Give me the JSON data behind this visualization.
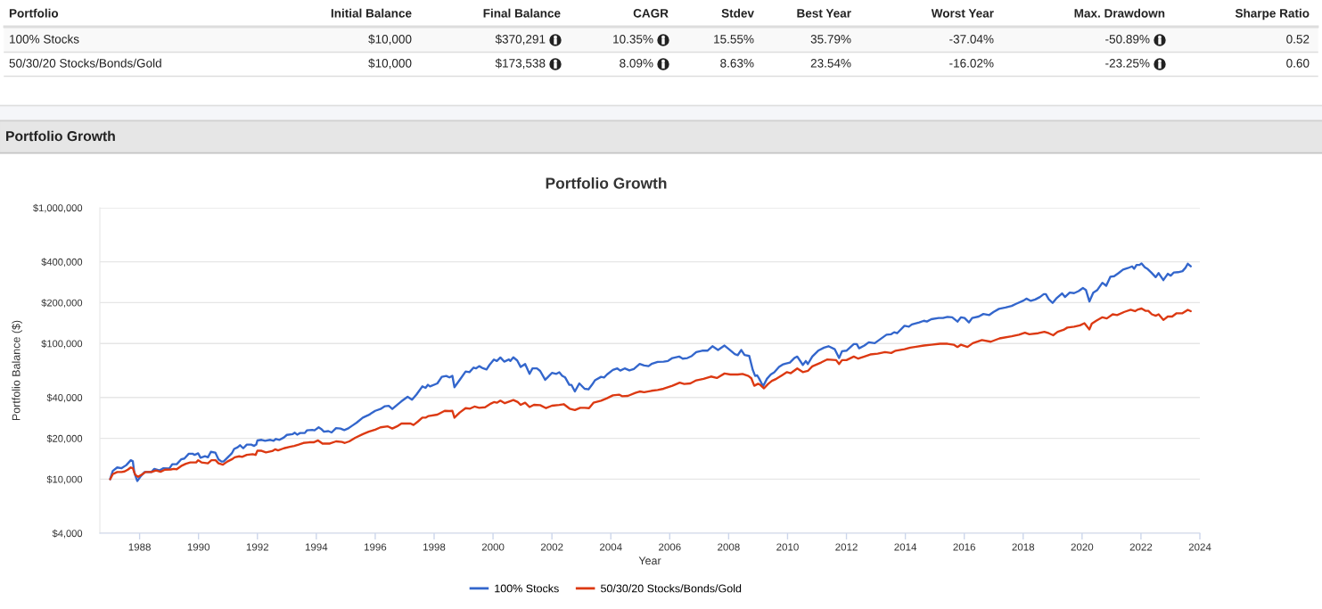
{
  "chart_data": [
    {
      "type": "other",
      "categories": [
        "Portfolio",
        "Initial Balance",
        "Final Balance",
        "CAGR",
        "Stdev",
        "Best Year",
        "Worst Year",
        "Max. Drawdown",
        "Sharpe Ratio"
      ],
      "y_categories": [
        "100% Stocks",
        "50/30/20 Stocks/Bonds/Gold"
      ],
      "cell_labels": [
        [
          "$10,000",
          "$370,291",
          "10.35%",
          "15.55%",
          "35.79%",
          "-37.04%",
          "-50.89%",
          "0.52"
        ],
        [
          "$10,000",
          "$173,538",
          "8.09%",
          "8.63%",
          "23.54%",
          "-16.02%",
          "-23.25%",
          "0.60"
        ]
      ]
    },
    {
      "type": "other",
      "title": "Portfolio Growth"
    },
    {
      "type": "line",
      "title": "Portfolio Growth",
      "xlabel": "Year",
      "ylabel": "Portfolio Balance ($)",
      "log": true,
      "xlim": [
        1986.65,
        2024
      ],
      "xticks": [
        1988,
        1990,
        1992,
        1994,
        1996,
        1998,
        2000,
        2002,
        2004,
        2006,
        2008,
        2010,
        2012,
        2014,
        2016,
        2018,
        2020,
        2022,
        2024
      ],
      "ylim": [
        4000,
        1000000
      ],
      "yticks": [
        {
          "value": 4000,
          "label": "$4,000"
        },
        {
          "value": 10000,
          "label": "$10,000"
        },
        {
          "value": 20000,
          "label": "$20,000"
        },
        {
          "value": 40000,
          "label": "$40,000"
        },
        {
          "value": 100000,
          "label": "$100,000"
        },
        {
          "value": 200000,
          "label": "$200,000"
        },
        {
          "value": 400000,
          "label": "$400,000"
        },
        {
          "value": 1000000,
          "label": "$1,000,000"
        }
      ],
      "grid": "y",
      "legend": "bottom",
      "series": [
        {
          "name": "100% Stocks",
          "color": "#3366cc",
          "x": [
            1987.0,
            1987.09,
            1987.24,
            1987.39,
            1987.55,
            1987.7,
            1987.77,
            1987.82,
            1987.92,
            1988.05,
            1988.17,
            1988.4,
            1988.5,
            1988.68,
            1988.81,
            1989.01,
            1989.11,
            1989.26,
            1989.41,
            1989.52,
            1989.67,
            1989.8,
            1989.87,
            1989.99,
            1990.07,
            1990.22,
            1990.32,
            1990.42,
            1990.57,
            1990.68,
            1990.78,
            1990.85,
            1990.98,
            1991.13,
            1991.21,
            1991.33,
            1991.41,
            1991.52,
            1991.64,
            1991.79,
            1991.89,
            1991.96,
            1992.0,
            1992.14,
            1992.26,
            1992.44,
            1992.55,
            1992.63,
            1992.75,
            1992.9,
            1993.0,
            1993.2,
            1993.27,
            1993.35,
            1993.45,
            1993.61,
            1993.68,
            1993.86,
            1993.94,
            1994.08,
            1994.16,
            1994.26,
            1994.41,
            1994.52,
            1994.67,
            1994.82,
            1994.95,
            1995.07,
            1995.22,
            1995.37,
            1995.58,
            1995.76,
            1995.83,
            1996.0,
            1996.18,
            1996.33,
            1996.46,
            1996.58,
            1996.77,
            1996.89,
            1997.1,
            1997.25,
            1997.4,
            1997.6,
            1997.71,
            1997.79,
            1997.86,
            1998.11,
            1998.26,
            1998.41,
            1998.52,
            1998.62,
            1998.69,
            1998.87,
            1999.07,
            1999.2,
            1999.34,
            1999.42,
            1999.53,
            1999.63,
            1999.78,
            1999.88,
            2000.03,
            2000.13,
            2000.25,
            2000.38,
            2000.54,
            2000.59,
            2000.69,
            2000.82,
            2000.94,
            2001.09,
            2001.24,
            2001.34,
            2001.49,
            2001.6,
            2001.77,
            2001.85,
            2002.0,
            2002.15,
            2002.25,
            2002.35,
            2002.45,
            2002.59,
            2002.66,
            2002.78,
            2002.93,
            2003.11,
            2003.24,
            2003.36,
            2003.46,
            2003.67,
            2003.77,
            2003.87,
            2004.07,
            2004.22,
            2004.32,
            2004.47,
            2004.63,
            2004.78,
            2004.98,
            2005.13,
            2005.28,
            2005.38,
            2005.59,
            2005.79,
            2005.94,
            2006.09,
            2006.32,
            2006.44,
            2006.6,
            2006.75,
            2006.9,
            2007.1,
            2007.28,
            2007.45,
            2007.64,
            2007.86,
            2008.01,
            2008.21,
            2008.31,
            2008.43,
            2008.54,
            2008.7,
            2008.82,
            2008.9,
            2008.97,
            2009.04,
            2009.17,
            2009.3,
            2009.43,
            2009.55,
            2009.71,
            2009.83,
            2009.93,
            2010.08,
            2010.23,
            2010.33,
            2010.52,
            2010.62,
            2010.69,
            2010.84,
            2011.04,
            2011.24,
            2011.39,
            2011.6,
            2011.75,
            2011.85,
            2012.0,
            2012.25,
            2012.35,
            2012.43,
            2012.61,
            2012.76,
            2012.96,
            2013.16,
            2013.36,
            2013.52,
            2013.62,
            2013.72,
            2013.97,
            2014.12,
            2014.22,
            2014.47,
            2014.63,
            2014.73,
            2014.88,
            2015.13,
            2015.28,
            2015.43,
            2015.59,
            2015.77,
            2015.89,
            2016.01,
            2016.16,
            2016.27,
            2016.49,
            2016.65,
            2016.85,
            2017.0,
            2017.18,
            2017.4,
            2017.61,
            2017.76,
            2018.01,
            2018.11,
            2018.26,
            2018.41,
            2018.57,
            2018.7,
            2018.77,
            2018.87,
            2019.0,
            2019.12,
            2019.32,
            2019.42,
            2019.58,
            2019.73,
            2019.88,
            2020.03,
            2020.13,
            2020.25,
            2020.38,
            2020.52,
            2020.69,
            2020.82,
            2020.96,
            2021.09,
            2021.24,
            2021.39,
            2021.55,
            2021.7,
            2021.77,
            2021.85,
            2021.95,
            2022.02,
            2022.13,
            2022.23,
            2022.35,
            2022.5,
            2022.6,
            2022.76,
            2022.91,
            2023.01,
            2023.11,
            2023.26,
            2023.41,
            2023.51,
            2023.59,
            2023.69
          ],
          "values": [
            10000,
            11500,
            12200,
            12050,
            12700,
            13800,
            13550,
            11200,
            9700,
            10600,
            11300,
            11300,
            11900,
            11600,
            12050,
            12000,
            12900,
            12900,
            14000,
            14200,
            15400,
            15400,
            15100,
            15500,
            14400,
            14750,
            14500,
            15900,
            15700,
            14000,
            13500,
            13500,
            14400,
            15500,
            16700,
            17200,
            17800,
            16900,
            18000,
            18000,
            17600,
            18000,
            19300,
            19500,
            19200,
            19500,
            19200,
            19800,
            19500,
            20300,
            21200,
            21500,
            22000,
            21300,
            21900,
            21900,
            22900,
            23100,
            22900,
            24100,
            23500,
            22400,
            22600,
            22100,
            23800,
            23600,
            23000,
            23600,
            24800,
            26100,
            28400,
            29600,
            30200,
            31900,
            32900,
            34500,
            34700,
            32900,
            35700,
            37500,
            40500,
            38500,
            42000,
            48300,
            47100,
            49600,
            48300,
            50800,
            56800,
            57700,
            56200,
            57700,
            47600,
            54000,
            62200,
            61500,
            66400,
            65500,
            68100,
            66100,
            64400,
            69500,
            76200,
            74300,
            78900,
            73500,
            76200,
            74300,
            79000,
            75000,
            67100,
            70600,
            59700,
            65500,
            65500,
            62800,
            54000,
            56200,
            60700,
            59700,
            61300,
            57700,
            56200,
            49600,
            49600,
            44300,
            50800,
            46400,
            45900,
            49600,
            53500,
            56800,
            56200,
            59100,
            63800,
            65500,
            63100,
            65500,
            63300,
            64800,
            70600,
            68800,
            68100,
            70600,
            73100,
            73500,
            74300,
            78100,
            80100,
            77300,
            78100,
            80900,
            86300,
            88500,
            88500,
            95500,
            89500,
            96500,
            90800,
            83400,
            82100,
            89500,
            82200,
            80900,
            63800,
            57700,
            58200,
            54900,
            48300,
            54900,
            59100,
            61300,
            67100,
            69800,
            71000,
            72400,
            78100,
            80100,
            69500,
            74300,
            70600,
            80100,
            88500,
            93200,
            95500,
            90800,
            78100,
            87700,
            88500,
            99000,
            99000,
            92200,
            96600,
            102000,
            100500,
            108000,
            116000,
            117000,
            121000,
            119000,
            135000,
            133000,
            138000,
            143000,
            147000,
            145000,
            151000,
            154000,
            154000,
            157000,
            156000,
            145000,
            156000,
            154000,
            143000,
            154000,
            158000,
            165000,
            162000,
            171000,
            180000,
            184000,
            189000,
            196000,
            207000,
            214000,
            206000,
            211000,
            220000,
            231000,
            231000,
            212000,
            199000,
            214000,
            234000,
            220000,
            237000,
            235000,
            243000,
            256000,
            248000,
            204000,
            237000,
            248000,
            280000,
            266000,
            310000,
            313000,
            330000,
            350000,
            359000,
            370000,
            355000,
            379000,
            379000,
            389000,
            364000,
            353000,
            333000,
            308000,
            330000,
            293000,
            326000,
            316000,
            333000,
            335000,
            341000,
            361000,
            387000,
            370000
          ]
        },
        {
          "name": "50/30/20 Stocks/Bonds/Gold",
          "color": "#dc3912",
          "x": [
            1987.0,
            1987.09,
            1987.24,
            1987.39,
            1987.49,
            1987.6,
            1987.7,
            1987.77,
            1987.85,
            1987.95,
            1988.1,
            1988.2,
            1988.4,
            1988.56,
            1988.71,
            1988.86,
            1989.06,
            1989.16,
            1989.26,
            1989.41,
            1989.57,
            1989.72,
            1989.92,
            1989.99,
            1990.1,
            1990.32,
            1990.44,
            1990.58,
            1990.68,
            1990.83,
            1990.98,
            1991.13,
            1991.23,
            1991.38,
            1991.48,
            1991.64,
            1991.84,
            1991.94,
            1992.0,
            1992.14,
            1992.29,
            1992.5,
            1992.6,
            1992.7,
            1992.9,
            1993.1,
            1993.25,
            1993.4,
            1993.56,
            1993.76,
            1993.91,
            1994.06,
            1994.21,
            1994.46,
            1994.67,
            1994.87,
            1994.97,
            1995.12,
            1995.32,
            1995.58,
            1995.78,
            1996.0,
            1996.18,
            1996.43,
            1996.58,
            1996.74,
            1996.89,
            1997.2,
            1997.3,
            1997.45,
            1997.6,
            1997.71,
            1997.81,
            1998.11,
            1998.36,
            1998.52,
            1998.62,
            1998.69,
            1998.87,
            1999.07,
            1999.22,
            1999.37,
            1999.53,
            1999.73,
            1999.93,
            2000.03,
            2000.13,
            2000.25,
            2000.4,
            2000.59,
            2000.69,
            2000.84,
            2000.94,
            2001.09,
            2001.24,
            2001.39,
            2001.6,
            2001.8,
            2002.0,
            2002.25,
            2002.4,
            2002.6,
            2002.78,
            2002.96,
            2003.11,
            2003.26,
            2003.41,
            2003.67,
            2003.87,
            2004.07,
            2004.28,
            2004.38,
            2004.58,
            2004.83,
            2004.98,
            2005.13,
            2005.38,
            2005.59,
            2005.79,
            2006.09,
            2006.34,
            2006.49,
            2006.7,
            2006.9,
            2007.15,
            2007.4,
            2007.6,
            2007.86,
            2008.06,
            2008.31,
            2008.47,
            2008.67,
            2008.77,
            2008.87,
            2009.0,
            2009.07,
            2009.2,
            2009.34,
            2009.47,
            2009.62,
            2009.82,
            2009.98,
            2010.11,
            2010.33,
            2010.52,
            2010.69,
            2010.84,
            2011.14,
            2011.34,
            2011.65,
            2011.75,
            2011.85,
            2012.0,
            2012.25,
            2012.4,
            2012.61,
            2012.81,
            2013.06,
            2013.31,
            2013.52,
            2013.67,
            2013.97,
            2014.17,
            2014.37,
            2014.63,
            2014.88,
            2015.18,
            2015.43,
            2015.64,
            2015.77,
            2015.89,
            2016.11,
            2016.29,
            2016.6,
            2016.9,
            2017.2,
            2017.61,
            2017.86,
            2018.06,
            2018.21,
            2018.51,
            2018.72,
            2018.87,
            2019.02,
            2019.17,
            2019.37,
            2019.5,
            2019.73,
            2019.93,
            2020.08,
            2020.25,
            2020.33,
            2020.48,
            2020.69,
            2020.84,
            2021.04,
            2021.19,
            2021.44,
            2021.65,
            2021.8,
            2021.9,
            2022.02,
            2022.15,
            2022.25,
            2022.37,
            2022.5,
            2022.6,
            2022.76,
            2022.91,
            2023.06,
            2023.21,
            2023.41,
            2023.59,
            2023.69
          ],
          "values": [
            10000,
            10900,
            11300,
            11300,
            11400,
            11750,
            12200,
            12050,
            10800,
            10400,
            10900,
            11300,
            11300,
            11600,
            11350,
            11750,
            11800,
            11900,
            11850,
            12500,
            13000,
            13300,
            13300,
            13800,
            13300,
            13100,
            13800,
            13800,
            13100,
            12800,
            13500,
            14000,
            14500,
            14750,
            14600,
            15100,
            15300,
            15100,
            16200,
            16200,
            15750,
            16100,
            16600,
            16300,
            16900,
            17300,
            17600,
            18000,
            18500,
            18700,
            18700,
            19300,
            18300,
            18300,
            19000,
            18800,
            18500,
            19000,
            20200,
            21500,
            22400,
            23200,
            24100,
            24500,
            23600,
            24500,
            25700,
            25700,
            25100,
            26600,
            28400,
            28400,
            29200,
            29900,
            31900,
            31800,
            31900,
            28400,
            31000,
            33400,
            33100,
            34300,
            33600,
            33900,
            36100,
            37000,
            36600,
            37900,
            36300,
            37600,
            38300,
            37000,
            35300,
            36600,
            34000,
            35300,
            35100,
            33400,
            34800,
            35300,
            35700,
            33100,
            32300,
            33600,
            33600,
            33400,
            36600,
            37900,
            39500,
            41500,
            42000,
            40900,
            41100,
            43200,
            44300,
            43700,
            44800,
            45400,
            46400,
            48800,
            51400,
            50300,
            50800,
            53500,
            54900,
            57100,
            55700,
            60100,
            59100,
            59100,
            59700,
            57700,
            55400,
            48800,
            50500,
            49600,
            46700,
            50300,
            53000,
            54900,
            58500,
            61500,
            60400,
            65500,
            61500,
            62800,
            67800,
            72400,
            76200,
            75400,
            70600,
            75400,
            75400,
            80100,
            77300,
            80100,
            83000,
            84200,
            86300,
            85100,
            88500,
            90800,
            93200,
            94600,
            96600,
            98000,
            99500,
            99500,
            98000,
            94200,
            98000,
            94200,
            100500,
            106000,
            103000,
            109000,
            113000,
            116000,
            120000,
            117000,
            119000,
            122000,
            119000,
            115000,
            122000,
            126000,
            131000,
            133000,
            136000,
            141000,
            127000,
            140000,
            147000,
            156000,
            153000,
            164000,
            162000,
            171000,
            177000,
            173000,
            178000,
            181000,
            174000,
            174000,
            164000,
            160000,
            164000,
            149000,
            158000,
            158000,
            167000,
            167000,
            177000,
            173000
          ]
        }
      ]
    }
  ]
}
